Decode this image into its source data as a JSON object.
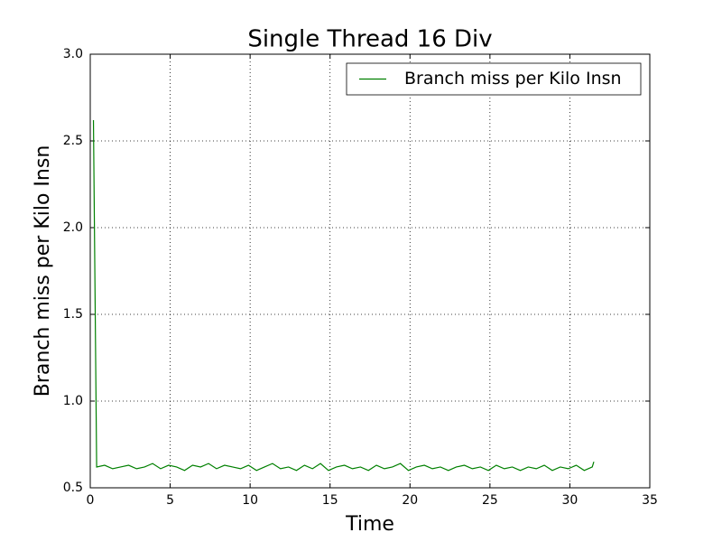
{
  "chart_data": {
    "type": "line",
    "title": "Single Thread 16 Div",
    "xlabel": "Time",
    "ylabel": "Branch miss per Kilo Insn",
    "x": [
      0.2,
      0.4,
      0.9,
      1.4,
      1.9,
      2.4,
      2.9,
      3.4,
      3.9,
      4.4,
      4.9,
      5.4,
      5.9,
      6.4,
      6.9,
      7.4,
      7.9,
      8.4,
      8.9,
      9.4,
      9.9,
      10.4,
      10.9,
      11.4,
      11.9,
      12.4,
      12.9,
      13.4,
      13.9,
      14.4,
      14.9,
      15.4,
      15.9,
      16.4,
      16.9,
      17.4,
      17.9,
      18.4,
      18.9,
      19.4,
      19.9,
      20.4,
      20.9,
      21.4,
      21.9,
      22.4,
      22.9,
      23.4,
      23.9,
      24.4,
      24.9,
      25.4,
      25.9,
      26.4,
      26.9,
      27.4,
      27.9,
      28.4,
      28.9,
      29.4,
      29.9,
      30.4,
      30.9,
      31.4,
      31.5
    ],
    "series": [
      {
        "name": "Branch miss per Kilo Insn",
        "color": "#008000",
        "values": [
          2.62,
          0.62,
          0.63,
          0.61,
          0.62,
          0.63,
          0.61,
          0.62,
          0.64,
          0.61,
          0.63,
          0.62,
          0.6,
          0.63,
          0.62,
          0.64,
          0.61,
          0.63,
          0.62,
          0.61,
          0.63,
          0.6,
          0.62,
          0.64,
          0.61,
          0.62,
          0.6,
          0.63,
          0.61,
          0.64,
          0.6,
          0.62,
          0.63,
          0.61,
          0.62,
          0.6,
          0.63,
          0.61,
          0.62,
          0.64,
          0.6,
          0.62,
          0.63,
          0.61,
          0.62,
          0.6,
          0.62,
          0.63,
          0.61,
          0.62,
          0.6,
          0.63,
          0.61,
          0.62,
          0.6,
          0.62,
          0.61,
          0.63,
          0.6,
          0.62,
          0.61,
          0.63,
          0.6,
          0.62,
          0.65
        ]
      }
    ],
    "xlim": [
      0,
      35
    ],
    "xticks": [
      0,
      5,
      10,
      15,
      20,
      25,
      30,
      35
    ],
    "ylim": [
      0.5,
      3.0
    ],
    "yticks": [
      0.5,
      {
        "value": 1.0,
        "label": "1.0"
      },
      1.5,
      {
        "value": 2.0,
        "label": "2.0"
      },
      2.5,
      {
        "value": 3.0,
        "label": "3.0"
      }
    ],
    "grid": true,
    "legend": "upper right"
  }
}
